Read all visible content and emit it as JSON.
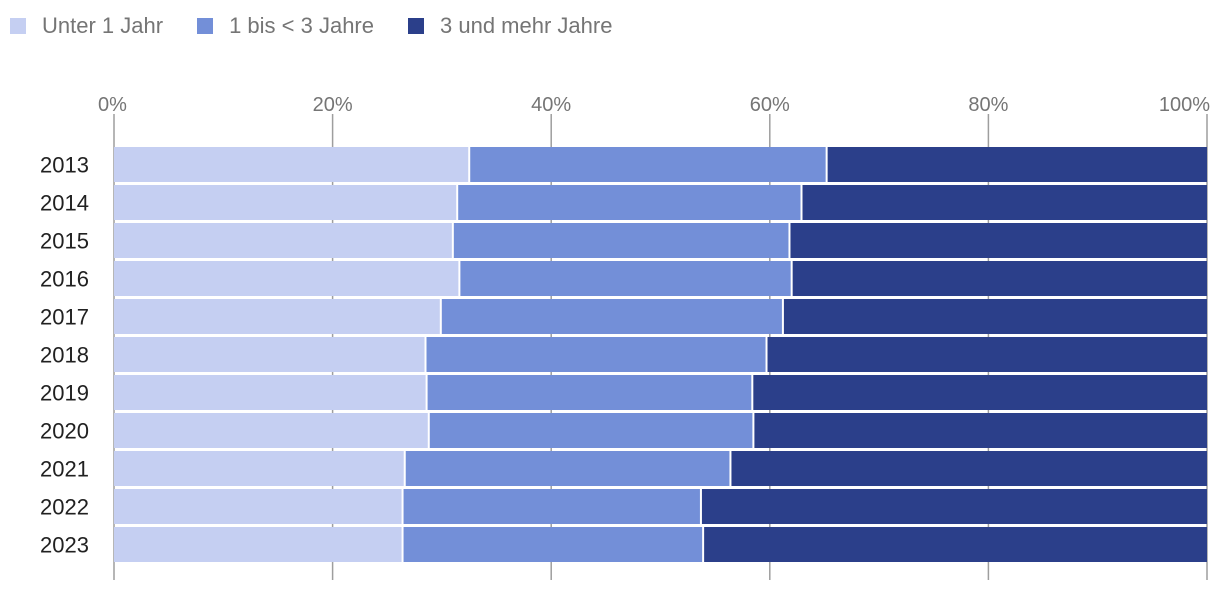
{
  "chart_data": {
    "type": "bar",
    "orientation": "horizontal",
    "stacked": true,
    "normalized": true,
    "title": "",
    "xlabel": "",
    "ylabel": "",
    "xlim": [
      0,
      100
    ],
    "x_ticks": [
      "0%",
      "20%",
      "40%",
      "60%",
      "80%",
      "100%"
    ],
    "grid": true,
    "legend_position": "top-left",
    "categories": [
      "2013",
      "2014",
      "2015",
      "2016",
      "2017",
      "2018",
      "2019",
      "2020",
      "2021",
      "2022",
      "2023"
    ],
    "series": [
      {
        "name": "Unter 1 Jahr",
        "color": "#c5cff2",
        "values": [
          32.5,
          31.4,
          31.0,
          31.6,
          29.9,
          28.5,
          28.6,
          28.8,
          26.6,
          26.4,
          26.4
        ]
      },
      {
        "name": "1 bis < 3 Jahre",
        "color": "#738fd8",
        "values": [
          32.7,
          31.5,
          30.8,
          30.4,
          31.3,
          31.2,
          29.8,
          29.7,
          29.8,
          27.3,
          27.5
        ]
      },
      {
        "name": "3 und mehr Jahre",
        "color": "#2b3f8a",
        "values": [
          34.8,
          37.1,
          38.2,
          38.0,
          38.8,
          40.3,
          41.6,
          41.5,
          43.6,
          46.3,
          46.1
        ]
      }
    ]
  }
}
